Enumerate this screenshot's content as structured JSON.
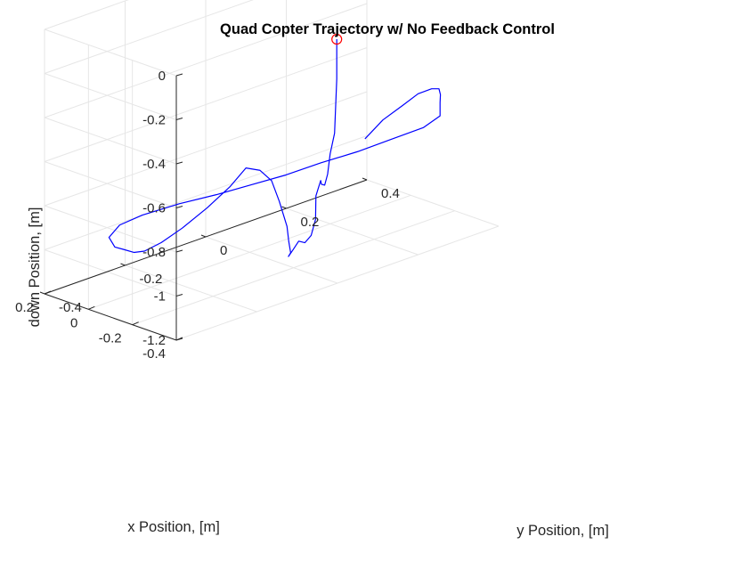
{
  "chart_data": {
    "type": "line3d",
    "title": "Quad Copter Trajectory w/ No Feedback Control",
    "xlabel": "x Position, [m]",
    "ylabel": "y Position, [m]",
    "zlabel": "down Position, [m]",
    "xlim": [
      -0.4,
      0.2
    ],
    "ylim": [
      -0.4,
      0.4
    ],
    "zlim": [
      -1.2,
      0
    ],
    "xticks": [
      -0.4,
      -0.2,
      0,
      0.2
    ],
    "xtick_labels": [
      "-0.4",
      "-0.2",
      "0",
      "0.2"
    ],
    "yticks": [
      -0.4,
      -0.2,
      0,
      0.2,
      0.4
    ],
    "ytick_labels": [
      "-0.4",
      "-0.2",
      "0",
      "0.2",
      "0.4"
    ],
    "zticks": [
      -1.2,
      -1,
      -0.8,
      -0.6,
      -0.4,
      -0.2,
      0
    ],
    "ztick_labels": [
      "-1.2",
      "-1",
      "-0.8",
      "-0.6",
      "-0.4",
      "-0.2",
      "0"
    ],
    "grid": true,
    "colors": {
      "trajectory": "#0000ff",
      "start_marker": "#ff0000",
      "grid": "#e6e6e6",
      "axis": "#262626"
    },
    "start_marker": {
      "x": -0.36,
      "y": 0.02,
      "z": -0.12,
      "shape": "circle"
    },
    "series": [
      {
        "points": [
          [
            -0.36,
            0.02,
            -0.12
          ],
          [
            -0.36,
            0.02,
            -0.3
          ],
          [
            -0.35,
            0.02,
            -0.55
          ],
          [
            -0.33,
            0.02,
            -0.65
          ],
          [
            -0.3,
            0.03,
            -0.76
          ],
          [
            -0.25,
            0.05,
            -0.84
          ],
          [
            -0.18,
            0.08,
            -0.88
          ],
          [
            -0.14,
            0.1,
            -0.89
          ],
          [
            -0.1,
            0.11,
            -0.98
          ],
          [
            -0.08,
            0.12,
            -1.1
          ],
          [
            -0.06,
            0.12,
            -1.18
          ],
          [
            -0.05,
            0.11,
            -1.21
          ],
          [
            -0.04,
            0.1,
            -1.2
          ],
          [
            -0.03,
            0.09,
            -1.24
          ],
          [
            -0.03,
            0.08,
            -1.26
          ],
          [
            -0.04,
            0.08,
            -1.24
          ],
          [
            -0.05,
            0.07,
            -1.18
          ],
          [
            -0.06,
            0.06,
            -1.1
          ],
          [
            -0.08,
            0.03,
            -0.96
          ],
          [
            -0.1,
            0.0,
            -0.84
          ],
          [
            -0.12,
            -0.04,
            -0.76
          ],
          [
            -0.13,
            -0.08,
            -0.72
          ],
          [
            -0.13,
            -0.12,
            -0.78
          ],
          [
            -0.1,
            -0.16,
            -0.86
          ],
          [
            -0.06,
            -0.2,
            -0.94
          ],
          [
            -0.02,
            -0.23,
            -1.0
          ],
          [
            0.02,
            -0.25,
            -1.04
          ],
          [
            0.05,
            -0.26,
            -1.05
          ],
          [
            0.08,
            -0.27,
            -1.04
          ],
          [
            0.1,
            -0.28,
            -1.03
          ],
          [
            0.09,
            -0.3,
            -0.97
          ],
          [
            0.06,
            -0.29,
            -0.91
          ],
          [
            0.03,
            -0.25,
            -0.88
          ],
          [
            -0.01,
            -0.18,
            -0.86
          ],
          [
            -0.05,
            -0.11,
            -0.85
          ],
          [
            -0.08,
            -0.04,
            -0.84
          ],
          [
            -0.11,
            0.03,
            -0.83
          ],
          [
            -0.14,
            0.1,
            -0.81
          ],
          [
            -0.18,
            0.17,
            -0.79
          ],
          [
            -0.22,
            0.23,
            -0.76
          ],
          [
            -0.26,
            0.29,
            -0.73
          ],
          [
            -0.28,
            0.32,
            -0.69
          ],
          [
            -0.28,
            0.32,
            -0.63
          ],
          [
            -0.3,
            0.31,
            -0.58
          ],
          [
            -0.33,
            0.29,
            -0.53
          ],
          [
            -0.37,
            0.25,
            -0.49
          ],
          [
            -0.4,
            0.2,
            -0.47
          ],
          [
            -0.44,
            0.14,
            -0.47
          ],
          [
            -0.46,
            0.08,
            -0.49
          ],
          [
            -0.47,
            0.03,
            -0.54
          ]
        ]
      }
    ]
  }
}
